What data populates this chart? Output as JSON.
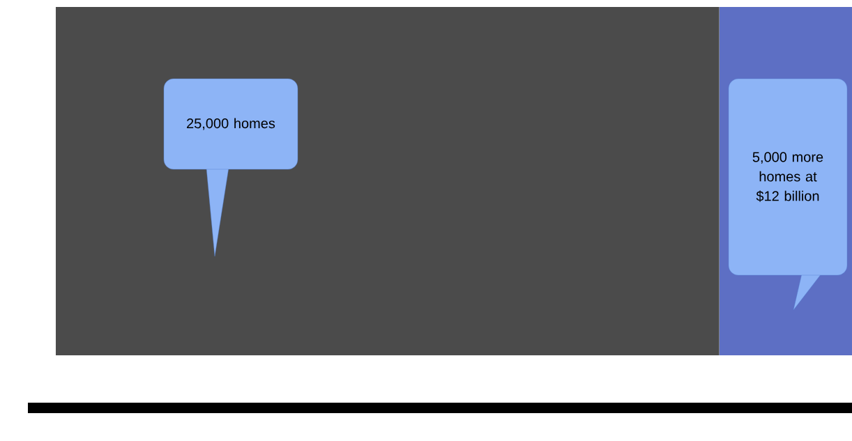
{
  "chart_data": {
    "type": "bar",
    "orientation": "horizontal",
    "stacked": true,
    "categories": [
      null
    ],
    "series": [
      {
        "color": "#4b4b4b",
        "values": [
          25000
        ],
        "value_labels": [
          "25,000 homes"
        ]
      },
      {
        "color": "#5d6fc4",
        "values": [
          5000
        ],
        "value_labels": [
          "5,000 more homes at $12 billion"
        ]
      }
    ]
  }
}
